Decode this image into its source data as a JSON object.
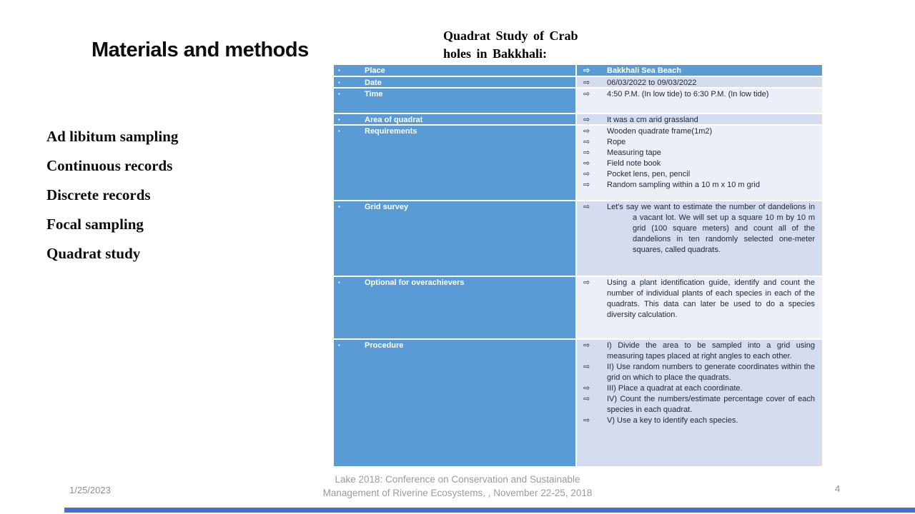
{
  "slide": {
    "title": "Materials and methods",
    "methods": [
      "Ad libitum sampling",
      "Continuous records",
      "Discrete records",
      "Focal sampling",
      "Quadrat study"
    ]
  },
  "table": {
    "title_line1": "Quadrat Study of Crab",
    "title_line2": "holes in Bakkhali:",
    "bullet_icon": "▪",
    "arrow_icon": "⇨",
    "rows": [
      {
        "label": "Place",
        "items": [
          "Bakkhali Sea Beach"
        ]
      },
      {
        "label": "Date",
        "items": [
          "06/03/2022 to 09/03/2022"
        ]
      },
      {
        "label": "Time",
        "items": [
          "4:50 P.M. (In low tide) to 6:30 P.M. (In low tide)"
        ]
      },
      {
        "label": "Area of quadrat",
        "items": [
          "It was a cm arid grassland"
        ]
      },
      {
        "label": "Requirements",
        "items": [
          "Wooden quadrate frame(1m2)",
          "Rope",
          "Measuring tape",
          "Field note book",
          "Pocket lens, pen, pencil",
          "Random sampling within a 10 m x 10 m grid"
        ]
      },
      {
        "label": "Grid survey",
        "items": [
          "Let's say we want to estimate the number of dandelions in a vacant lot. We will set up a square 10 m by 10 m grid (100 square meters) and count all of the dandelions in ten randomly selected one-meter squares, called quadrats."
        ]
      },
      {
        "label": "Optional for overachievers",
        "items": [
          "Using a plant identification guide, identify and count the number of individual plants of each species in each of the quadrats. This data can later be used to do a species diversity calculation."
        ]
      },
      {
        "label": "Procedure",
        "items": [
          "I) Divide the area to be sampled into a grid using measuring tapes placed at right angles to each other.",
          "II) Use random numbers to generate coordinates within the grid on which to place the quadrats.",
          "III) Place a quadrat at each coordinate.",
          "IV) Count the numbers/estimate percentage cover of each species in each quadrat.",
          "V) Use a key to identify each species."
        ]
      }
    ]
  },
  "footer": {
    "date": "1/25/2023",
    "conference_line1": "Lake 2018: Conference on Conservation and Sustainable",
    "conference_line2": "Management of Riverine Ecosystems, , November 22-25, 2018",
    "page_number": "4"
  },
  "colors": {
    "table_header_blue": "#5b9bd5",
    "band_dark": "#d4dcee",
    "band_light": "#ebeff8",
    "accent_bar_blue": "#4472c4",
    "footer_gray": "#9b9b9b"
  }
}
